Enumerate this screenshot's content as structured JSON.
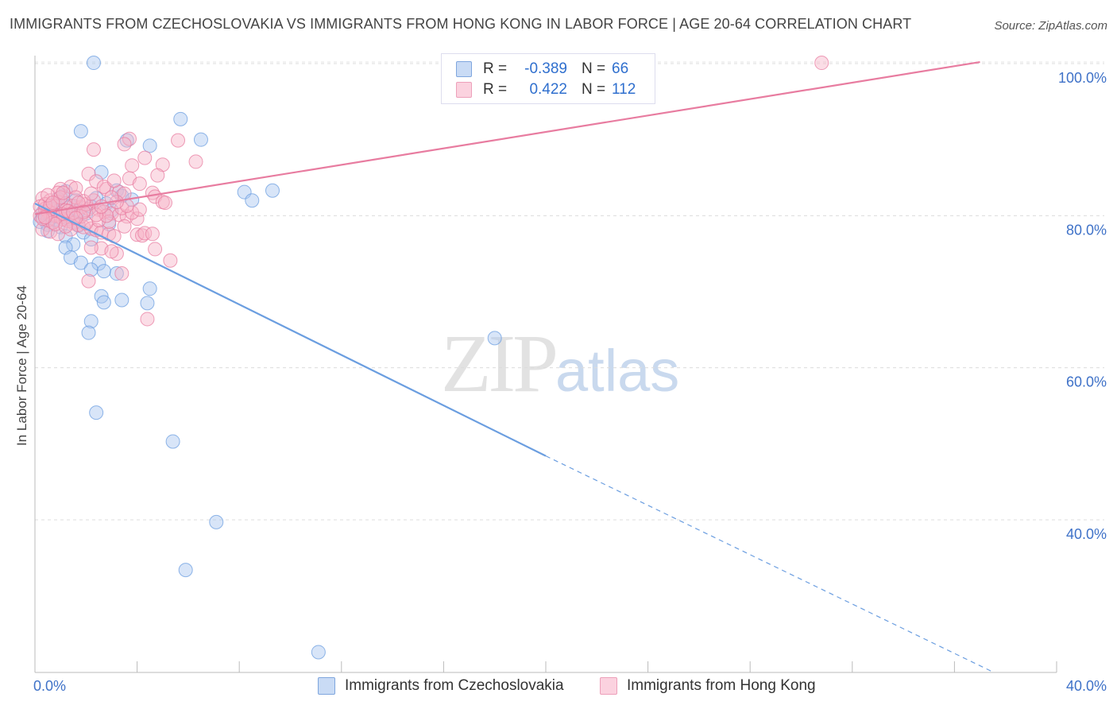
{
  "title": "IMMIGRANTS FROM CZECHOSLOVAKIA VS IMMIGRANTS FROM HONG KONG IN LABOR FORCE | AGE 20-64 CORRELATION CHART",
  "source": "Source: ZipAtlas.com",
  "watermark": {
    "zip": "ZIP",
    "atlas": "atlas"
  },
  "stats": [
    {
      "r_label": "R =",
      "r_value": "-0.389",
      "n_label": "N =",
      "n_value": "66",
      "color": "#a9c6ef"
    },
    {
      "r_label": "R =",
      "r_value": "0.422",
      "n_label": "N =",
      "n_value": "112",
      "color": "#f6b3c8"
    }
  ],
  "legend": [
    {
      "label": "Immigrants from Czechoslovakia",
      "color": "#a9c6ef"
    },
    {
      "label": "Immigrants from Hong Kong",
      "color": "#f6b3c8"
    }
  ],
  "chart_data": {
    "type": "scatter",
    "title": "IMMIGRANTS FROM CZECHOSLOVAKIA VS IMMIGRANTS FROM HONG KONG IN LABOR FORCE | AGE 20-64 CORRELATION CHART",
    "xlabel": "",
    "ylabel": "In Labor Force | Age 20-64",
    "xlim": [
      0,
      40
    ],
    "ylim": [
      21.5,
      102
    ],
    "x_tick_labels": [
      {
        "x": 0,
        "label": "0.0%"
      },
      {
        "x": 40,
        "label": "40.0%"
      }
    ],
    "y_tick_labels": [
      {
        "y": 100,
        "label": "100.0%"
      },
      {
        "y": 80,
        "label": "80.0%"
      },
      {
        "y": 60,
        "label": "60.0%"
      },
      {
        "y": 40,
        "label": "40.0%"
      }
    ],
    "grid": true,
    "series": [
      {
        "name": "Immigrants from Czechoslovakia",
        "color": "#6b9ee0",
        "fill": "#a9c6ef",
        "points": [
          [
            2.3,
            100.1
          ],
          [
            1.8,
            91.1
          ],
          [
            5.7,
            92.7
          ],
          [
            3.6,
            89.9
          ],
          [
            4.5,
            89.2
          ],
          [
            6.5,
            90.0
          ],
          [
            2.6,
            85.7
          ],
          [
            3.2,
            83.3
          ],
          [
            2.4,
            82.3
          ],
          [
            3.4,
            82.6
          ],
          [
            8.2,
            83.1
          ],
          [
            9.3,
            83.3
          ],
          [
            8.5,
            82.0
          ],
          [
            1.1,
            82.6
          ],
          [
            1.2,
            83.2
          ],
          [
            0.9,
            82.2
          ],
          [
            0.6,
            81.0
          ],
          [
            0.4,
            80.5
          ],
          [
            0.3,
            79.8
          ],
          [
            0.2,
            79.2
          ],
          [
            0.5,
            78.8
          ],
          [
            0.8,
            79.5
          ],
          [
            1.3,
            80.1
          ],
          [
            1.5,
            79.2
          ],
          [
            1.7,
            78.7
          ],
          [
            2.0,
            80.3
          ],
          [
            2.2,
            81.2
          ],
          [
            2.8,
            81.6
          ],
          [
            0.7,
            80.9
          ],
          [
            1.0,
            78.5
          ],
          [
            1.9,
            77.8
          ],
          [
            0.5,
            78.0
          ],
          [
            1.2,
            77.3
          ],
          [
            1.5,
            76.2
          ],
          [
            1.2,
            75.8
          ],
          [
            1.4,
            74.5
          ],
          [
            2.2,
            76.9
          ],
          [
            1.8,
            73.8
          ],
          [
            2.5,
            73.7
          ],
          [
            2.2,
            72.9
          ],
          [
            2.7,
            72.7
          ],
          [
            3.2,
            72.4
          ],
          [
            2.6,
            69.4
          ],
          [
            2.7,
            68.6
          ],
          [
            3.4,
            68.9
          ],
          [
            4.4,
            68.5
          ],
          [
            4.5,
            70.4
          ],
          [
            2.2,
            66.1
          ],
          [
            2.1,
            64.6
          ],
          [
            18.0,
            63.9
          ],
          [
            2.4,
            54.1
          ],
          [
            5.4,
            50.3
          ],
          [
            7.1,
            39.7
          ],
          [
            5.9,
            33.4
          ],
          [
            11.1,
            22.6
          ],
          [
            0.8,
            81.5
          ],
          [
            1.6,
            82.0
          ],
          [
            3.0,
            80.7
          ],
          [
            0.3,
            80.4
          ],
          [
            1.4,
            81.3
          ],
          [
            2.9,
            78.9
          ],
          [
            3.8,
            82.1
          ],
          [
            0.9,
            79.9
          ],
          [
            0.6,
            80.0
          ],
          [
            1.3,
            79.6
          ],
          [
            1.7,
            80.6
          ]
        ],
        "trendline": {
          "from": [
            0,
            81.6
          ],
          "solid_to": [
            20,
            48.4
          ],
          "dashed_to": [
            37.5,
            20.0
          ]
        }
      },
      {
        "name": "Immigrants from Hong Kong",
        "color": "#e87ca0",
        "fill": "#f6b3c8",
        "points": [
          [
            30.8,
            100.1
          ],
          [
            3.7,
            90.1
          ],
          [
            3.5,
            89.4
          ],
          [
            2.3,
            88.7
          ],
          [
            5.6,
            89.9
          ],
          [
            6.3,
            87.1
          ],
          [
            3.8,
            86.6
          ],
          [
            5.0,
            86.7
          ],
          [
            4.3,
            87.6
          ],
          [
            2.1,
            85.5
          ],
          [
            2.4,
            84.5
          ],
          [
            3.7,
            84.9
          ],
          [
            4.1,
            84.2
          ],
          [
            4.8,
            85.3
          ],
          [
            1.4,
            83.8
          ],
          [
            1.0,
            83.5
          ],
          [
            1.6,
            83.6
          ],
          [
            2.8,
            83.5
          ],
          [
            3.3,
            83.1
          ],
          [
            3.5,
            82.9
          ],
          [
            4.6,
            83.0
          ],
          [
            4.7,
            82.5
          ],
          [
            5.0,
            81.8
          ],
          [
            5.1,
            81.7
          ],
          [
            0.3,
            82.3
          ],
          [
            0.6,
            82.0
          ],
          [
            0.9,
            81.8
          ],
          [
            1.2,
            81.6
          ],
          [
            1.5,
            81.3
          ],
          [
            1.8,
            81.1
          ],
          [
            2.1,
            80.9
          ],
          [
            2.5,
            80.8
          ],
          [
            2.7,
            80.5
          ],
          [
            3.0,
            80.3
          ],
          [
            3.3,
            80.1
          ],
          [
            3.6,
            79.9
          ],
          [
            4.0,
            79.6
          ],
          [
            0.2,
            81.2
          ],
          [
            0.4,
            80.9
          ],
          [
            0.5,
            80.6
          ],
          [
            0.7,
            80.3
          ],
          [
            0.8,
            80.0
          ],
          [
            1.0,
            79.8
          ],
          [
            1.1,
            79.5
          ],
          [
            1.3,
            79.3
          ],
          [
            1.5,
            79.0
          ],
          [
            1.7,
            78.8
          ],
          [
            1.9,
            78.5
          ],
          [
            2.2,
            78.3
          ],
          [
            2.4,
            78.1
          ],
          [
            2.6,
            77.8
          ],
          [
            2.9,
            77.6
          ],
          [
            3.1,
            77.3
          ],
          [
            0.3,
            78.2
          ],
          [
            0.6,
            77.9
          ],
          [
            0.9,
            77.6
          ],
          [
            4.0,
            77.5
          ],
          [
            4.2,
            77.4
          ],
          [
            4.3,
            77.7
          ],
          [
            4.6,
            77.6
          ],
          [
            4.7,
            75.6
          ],
          [
            5.3,
            74.1
          ],
          [
            3.2,
            75.0
          ],
          [
            2.6,
            75.7
          ],
          [
            3.0,
            75.3
          ],
          [
            2.2,
            75.8
          ],
          [
            3.4,
            72.4
          ],
          [
            2.1,
            71.4
          ],
          [
            4.4,
            66.4
          ],
          [
            0.5,
            79.4
          ],
          [
            1.2,
            80.7
          ],
          [
            1.8,
            79.9
          ],
          [
            2.0,
            81.5
          ],
          [
            2.3,
            82.0
          ],
          [
            2.9,
            79.2
          ],
          [
            3.4,
            81.0
          ],
          [
            3.8,
            80.4
          ],
          [
            0.4,
            81.5
          ],
          [
            0.7,
            79.1
          ],
          [
            1.4,
            78.2
          ],
          [
            1.6,
            82.4
          ],
          [
            2.7,
            83.8
          ],
          [
            3.1,
            84.6
          ],
          [
            0.9,
            83.0
          ],
          [
            1.1,
            80.2
          ],
          [
            0.2,
            80.0
          ],
          [
            0.3,
            79.6
          ],
          [
            1.9,
            81.9
          ],
          [
            2.5,
            79.4
          ],
          [
            3.6,
            81.3
          ],
          [
            1.0,
            82.4
          ],
          [
            1.3,
            80.6
          ],
          [
            0.6,
            81.3
          ],
          [
            0.8,
            78.9
          ],
          [
            2.0,
            79.0
          ],
          [
            2.8,
            80.0
          ],
          [
            3.5,
            78.6
          ],
          [
            1.5,
            80.4
          ],
          [
            1.7,
            81.7
          ],
          [
            0.5,
            82.7
          ],
          [
            2.4,
            80.1
          ],
          [
            3.2,
            81.8
          ],
          [
            4.1,
            80.8
          ],
          [
            0.4,
            79.8
          ],
          [
            1.2,
            78.6
          ],
          [
            1.9,
            80.5
          ],
          [
            2.6,
            81.2
          ],
          [
            3.0,
            82.4
          ],
          [
            0.7,
            81.7
          ],
          [
            1.1,
            83.0
          ],
          [
            1.6,
            79.7
          ],
          [
            2.2,
            82.9
          ]
        ],
        "trendline": {
          "from": [
            0,
            80.2
          ],
          "solid_to": [
            37.0,
            100.2
          ]
        }
      }
    ]
  }
}
